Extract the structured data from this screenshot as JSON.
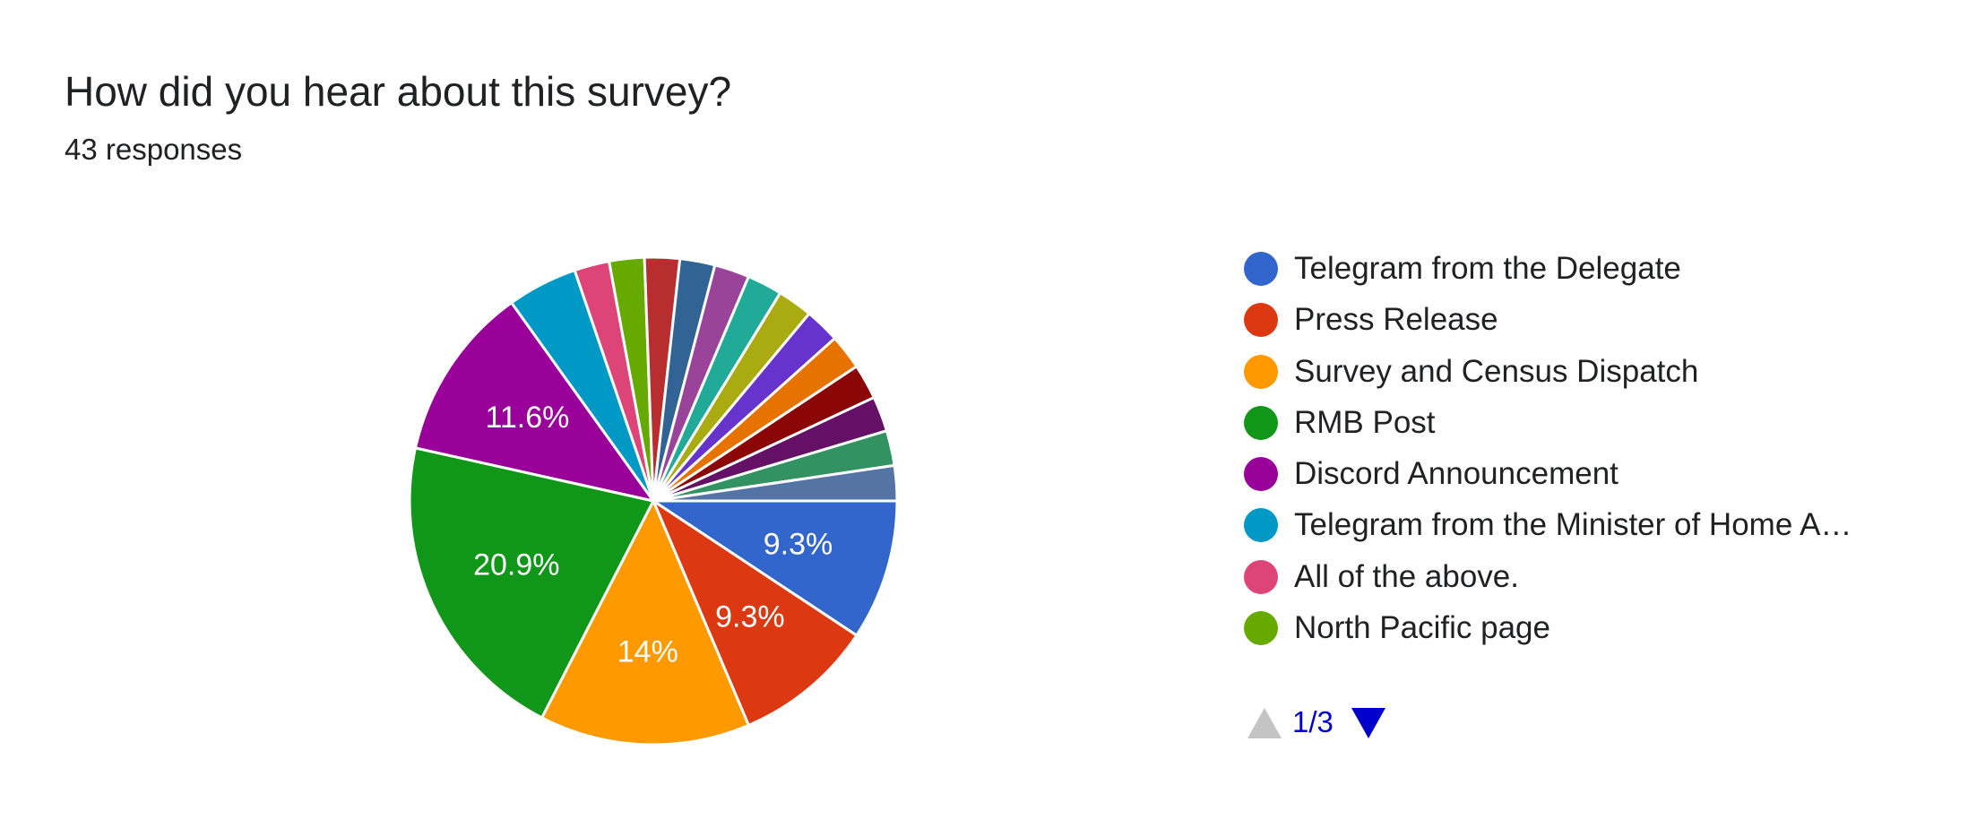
{
  "question": {
    "title": "How did you hear about this survey?",
    "responses": "43 responses"
  },
  "chart_data": {
    "type": "pie",
    "total_responses": 43,
    "slices": [
      {
        "label": "Telegram from the Delegate",
        "count": 4,
        "percent_label": "9.3%",
        "color": "#3366cc"
      },
      {
        "label": "Press Release",
        "count": 4,
        "percent_label": "9.3%",
        "color": "#dc3912"
      },
      {
        "label": "Survey and Census Dispatch",
        "count": 6,
        "percent_label": "14%",
        "color": "#ff9900"
      },
      {
        "label": "RMB Post",
        "count": 9,
        "percent_label": "20.9%",
        "color": "#109618"
      },
      {
        "label": "Discord Announcement",
        "count": 5,
        "percent_label": "11.6%",
        "color": "#990099"
      },
      {
        "label": "Telegram from the Minister of Home A…",
        "count": 2,
        "percent_label": "",
        "color": "#0099c6"
      },
      {
        "label": "All of the above.",
        "count": 1,
        "percent_label": "",
        "color": "#dd4477"
      },
      {
        "label": "North Pacific page",
        "count": 1,
        "percent_label": "",
        "color": "#66aa00"
      },
      {
        "label": "",
        "count": 1,
        "percent_label": "",
        "color": "#b82e2e"
      },
      {
        "label": "",
        "count": 1,
        "percent_label": "",
        "color": "#316395"
      },
      {
        "label": "",
        "count": 1,
        "percent_label": "",
        "color": "#994499"
      },
      {
        "label": "",
        "count": 1,
        "percent_label": "",
        "color": "#22aa99"
      },
      {
        "label": "",
        "count": 1,
        "percent_label": "",
        "color": "#aaaa11"
      },
      {
        "label": "",
        "count": 1,
        "percent_label": "",
        "color": "#6633cc"
      },
      {
        "label": "",
        "count": 1,
        "percent_label": "",
        "color": "#e67300"
      },
      {
        "label": "",
        "count": 1,
        "percent_label": "",
        "color": "#8b0707"
      },
      {
        "label": "",
        "count": 1,
        "percent_label": "",
        "color": "#651067"
      },
      {
        "label": "",
        "count": 1,
        "percent_label": "",
        "color": "#329262"
      },
      {
        "label": "",
        "count": 1,
        "percent_label": "",
        "color": "#5574a6"
      }
    ],
    "legend_position": "right"
  },
  "legend_page": {
    "text": "1/3",
    "visible_items": 8
  }
}
